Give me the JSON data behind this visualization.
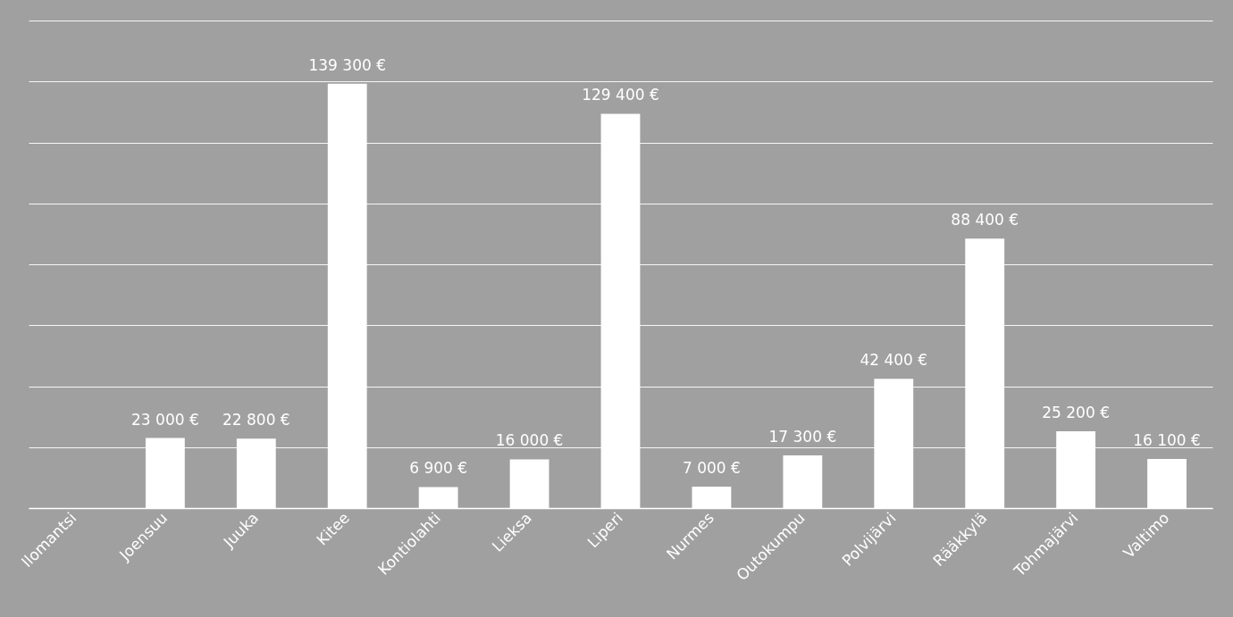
{
  "chart_data": {
    "type": "bar",
    "categories": [
      "Ilomantsi",
      "Joensuu",
      "Juuka",
      "Kitee",
      "Kontiolahti",
      "Lieksa",
      "Liperi",
      "Nurmes",
      "Outokumpu",
      "Polvijärvi",
      "Rääkkylä",
      "Tohmajärvi",
      "Valtimo"
    ],
    "values": [
      null,
      23000,
      22800,
      139300,
      6900,
      16000,
      129400,
      7000,
      17300,
      42400,
      88400,
      25200,
      16100
    ],
    "value_labels": [
      null,
      "23 000 €",
      "22 800 €",
      "139 300 €",
      "6 900 €",
      "16 000 €",
      "129 400 €",
      "7 000 €",
      "17 300 €",
      "42 400 €",
      "88 400 €",
      "25 200 €",
      "16 100 €"
    ],
    "color": "#ffffff",
    "ylim": [
      0,
      160000
    ],
    "yticks": [
      {
        "value": 0,
        "label": null
      },
      {
        "value": 20000,
        "label": null
      },
      {
        "value": 40000,
        "label": null
      },
      {
        "value": 60000,
        "label": null
      },
      {
        "value": 80000,
        "label": null
      },
      {
        "value": 100000,
        "label": null
      },
      {
        "value": 120000,
        "label": null
      },
      {
        "value": 140000,
        "label": null
      },
      {
        "value": 160000,
        "label": null
      }
    ],
    "grid": "y",
    "tick_labels": "x"
  }
}
